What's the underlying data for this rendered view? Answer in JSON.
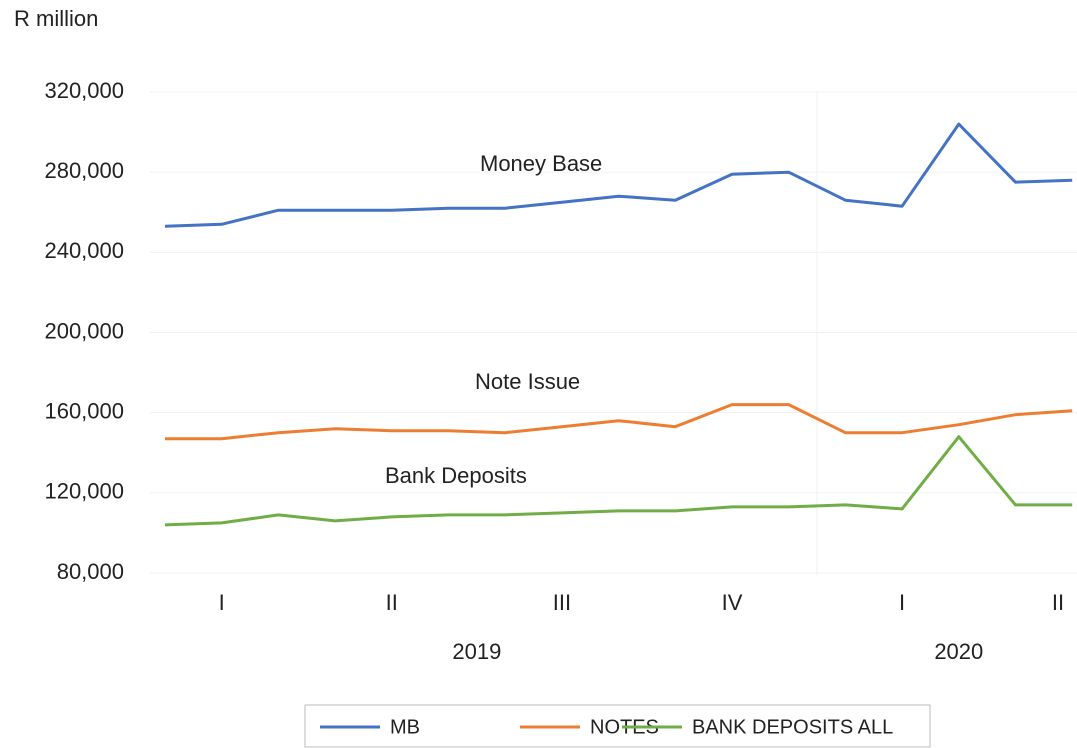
{
  "chart_data": {
    "type": "line",
    "y_axis_label": "R million",
    "categories": [
      null,
      "I",
      null,
      null,
      "II",
      null,
      null,
      "III",
      null,
      null,
      "IV",
      null,
      null,
      "I",
      null,
      null,
      "II"
    ],
    "year_groups": [
      {
        "label": "2019",
        "count": 12
      },
      {
        "label": "2020",
        "count": 5
      }
    ],
    "ylim": [
      80000,
      320000
    ],
    "yticks": [
      {
        "value": 80000,
        "label": "80,000"
      },
      {
        "value": 120000,
        "label": "120,000"
      },
      {
        "value": 160000,
        "label": "160,000"
      },
      {
        "value": 200000,
        "label": "200,000"
      },
      {
        "value": 240000,
        "label": "240,000"
      },
      {
        "value": 280000,
        "label": "280,000"
      },
      {
        "value": 320000,
        "label": "320,000"
      }
    ],
    "grid": true,
    "legend": "bottom",
    "series": [
      {
        "name": "MB",
        "color": "#4472c4",
        "annotation": "Money Base",
        "values": [
          253000,
          254000,
          261000,
          261000,
          261000,
          262000,
          262000,
          265000,
          268000,
          266000,
          279000,
          280000,
          266000,
          263000,
          304000,
          275000,
          276000
        ]
      },
      {
        "name": "NOTES",
        "color": "#ed7d31",
        "annotation": "Note Issue",
        "values": [
          147000,
          147000,
          150000,
          152000,
          151000,
          151000,
          150000,
          153000,
          156000,
          153000,
          164000,
          164000,
          150000,
          150000,
          154000,
          159000,
          161000
        ]
      },
      {
        "name": "BANK DEPOSITS ALL",
        "color": "#70ad47",
        "annotation": "Bank Deposits",
        "values": [
          104000,
          105000,
          109000,
          106000,
          108000,
          109000,
          109000,
          110000,
          111000,
          111000,
          113000,
          113000,
          114000,
          112000,
          148000,
          114000,
          114000
        ]
      }
    ]
  }
}
